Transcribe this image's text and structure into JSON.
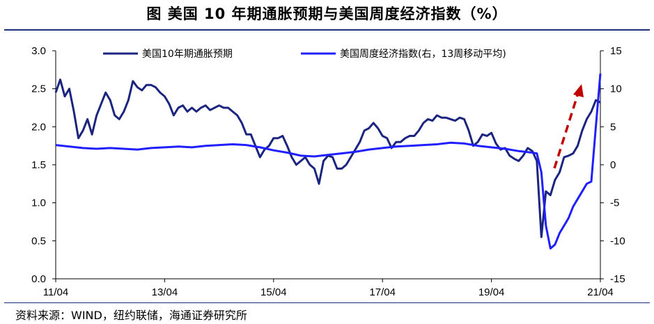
{
  "title": "图  美国 10 年期通胀预期与美国周度经济指数（%）",
  "source": "资料来源：WIND，纽约联储，海通证券研究所",
  "colors": {
    "expectation": "#1b2580",
    "weekly": "#1f1fff",
    "arrow": "#c00000"
  },
  "chart_data": {
    "type": "line",
    "x_ticks": [
      "11/04",
      "13/04",
      "15/04",
      "17/04",
      "19/04",
      "21/04"
    ],
    "y_left": {
      "ticks": [
        "3.0",
        "2.5",
        "2.0",
        "1.5",
        "1.0",
        "0.5",
        "0.0"
      ],
      "range": [
        0,
        3
      ]
    },
    "y_right": {
      "ticks": [
        "15",
        "10",
        "5",
        "0",
        "-5",
        "-10",
        "-15"
      ],
      "range": [
        -15,
        15
      ]
    },
    "legend_placement": "top",
    "annotation": "red dashed arrow pointing up-right near 2021",
    "series": [
      {
        "name": "美国10年期通胀预期",
        "axis": "left",
        "points": [
          [
            "2011-04",
            2.45
          ],
          [
            "2011-05",
            2.62
          ],
          [
            "2011-06",
            2.4
          ],
          [
            "2011-07",
            2.5
          ],
          [
            "2011-08",
            2.2
          ],
          [
            "2011-09",
            1.85
          ],
          [
            "2011-10",
            1.95
          ],
          [
            "2011-11",
            2.1
          ],
          [
            "2011-12",
            1.9
          ],
          [
            "2012-01",
            2.15
          ],
          [
            "2012-02",
            2.3
          ],
          [
            "2012-03",
            2.45
          ],
          [
            "2012-04",
            2.35
          ],
          [
            "2012-05",
            2.15
          ],
          [
            "2012-06",
            2.1
          ],
          [
            "2012-07",
            2.2
          ],
          [
            "2012-08",
            2.35
          ],
          [
            "2012-09",
            2.6
          ],
          [
            "2012-10",
            2.52
          ],
          [
            "2012-11",
            2.48
          ],
          [
            "2012-12",
            2.55
          ],
          [
            "2013-01",
            2.55
          ],
          [
            "2013-02",
            2.52
          ],
          [
            "2013-03",
            2.45
          ],
          [
            "2013-04",
            2.4
          ],
          [
            "2013-05",
            2.3
          ],
          [
            "2013-06",
            2.15
          ],
          [
            "2013-07",
            2.25
          ],
          [
            "2013-08",
            2.28
          ],
          [
            "2013-09",
            2.2
          ],
          [
            "2013-10",
            2.25
          ],
          [
            "2013-11",
            2.2
          ],
          [
            "2013-12",
            2.25
          ],
          [
            "2014-01",
            2.28
          ],
          [
            "2014-02",
            2.22
          ],
          [
            "2014-03",
            2.25
          ],
          [
            "2014-04",
            2.28
          ],
          [
            "2014-05",
            2.25
          ],
          [
            "2014-06",
            2.25
          ],
          [
            "2014-07",
            2.2
          ],
          [
            "2014-08",
            2.15
          ],
          [
            "2014-09",
            2.05
          ],
          [
            "2014-10",
            1.9
          ],
          [
            "2014-11",
            1.9
          ],
          [
            "2014-12",
            1.75
          ],
          [
            "2015-01",
            1.6
          ],
          [
            "2015-02",
            1.7
          ],
          [
            "2015-03",
            1.75
          ],
          [
            "2015-04",
            1.85
          ],
          [
            "2015-05",
            1.85
          ],
          [
            "2015-06",
            1.88
          ],
          [
            "2015-07",
            1.75
          ],
          [
            "2015-08",
            1.6
          ],
          [
            "2015-09",
            1.5
          ],
          [
            "2015-10",
            1.55
          ],
          [
            "2015-11",
            1.6
          ],
          [
            "2015-12",
            1.5
          ],
          [
            "2016-01",
            1.45
          ],
          [
            "2016-02",
            1.25
          ],
          [
            "2016-03",
            1.55
          ],
          [
            "2016-04",
            1.62
          ],
          [
            "2016-05",
            1.6
          ],
          [
            "2016-06",
            1.45
          ],
          [
            "2016-07",
            1.45
          ],
          [
            "2016-08",
            1.5
          ],
          [
            "2016-09",
            1.6
          ],
          [
            "2016-10",
            1.7
          ],
          [
            "2016-11",
            1.8
          ],
          [
            "2016-12",
            1.95
          ],
          [
            "2017-01",
            1.98
          ],
          [
            "2017-02",
            2.05
          ],
          [
            "2017-03",
            1.98
          ],
          [
            "2017-04",
            1.88
          ],
          [
            "2017-05",
            1.85
          ],
          [
            "2017-06",
            1.72
          ],
          [
            "2017-07",
            1.8
          ],
          [
            "2017-08",
            1.8
          ],
          [
            "2017-09",
            1.85
          ],
          [
            "2017-10",
            1.88
          ],
          [
            "2017-11",
            1.88
          ],
          [
            "2017-12",
            1.95
          ],
          [
            "2018-01",
            2.05
          ],
          [
            "2018-02",
            2.1
          ],
          [
            "2018-03",
            2.08
          ],
          [
            "2018-04",
            2.15
          ],
          [
            "2018-05",
            2.12
          ],
          [
            "2018-06",
            2.12
          ],
          [
            "2018-07",
            2.1
          ],
          [
            "2018-08",
            2.08
          ],
          [
            "2018-09",
            2.12
          ],
          [
            "2018-10",
            2.1
          ],
          [
            "2018-11",
            1.95
          ],
          [
            "2018-12",
            1.75
          ],
          [
            "2019-01",
            1.8
          ],
          [
            "2019-02",
            1.9
          ],
          [
            "2019-03",
            1.88
          ],
          [
            "2019-04",
            1.92
          ],
          [
            "2019-05",
            1.78
          ],
          [
            "2019-06",
            1.7
          ],
          [
            "2019-07",
            1.72
          ],
          [
            "2019-08",
            1.62
          ],
          [
            "2019-09",
            1.58
          ],
          [
            "2019-10",
            1.55
          ],
          [
            "2019-11",
            1.62
          ],
          [
            "2019-12",
            1.72
          ],
          [
            "2020-01",
            1.68
          ],
          [
            "2020-02",
            1.55
          ],
          [
            "2020-03",
            0.55
          ],
          [
            "2020-04",
            1.15
          ],
          [
            "2020-05",
            1.1
          ],
          [
            "2020-06",
            1.3
          ],
          [
            "2020-07",
            1.4
          ],
          [
            "2020-08",
            1.6
          ],
          [
            "2020-09",
            1.62
          ],
          [
            "2020-10",
            1.65
          ],
          [
            "2020-11",
            1.75
          ],
          [
            "2020-12",
            1.95
          ],
          [
            "2021-01",
            2.1
          ],
          [
            "2021-02",
            2.2
          ],
          [
            "2021-03",
            2.35
          ],
          [
            "2021-04",
            2.32
          ]
        ]
      },
      {
        "name": "美国周度经济指数(右，13周移动平均)",
        "axis": "right",
        "points": [
          [
            "2011-04",
            2.6
          ],
          [
            "2011-07",
            2.4
          ],
          [
            "2011-10",
            2.2
          ],
          [
            "2012-01",
            2.1
          ],
          [
            "2012-04",
            2.2
          ],
          [
            "2012-07",
            2.1
          ],
          [
            "2012-10",
            2.0
          ],
          [
            "2013-01",
            2.2
          ],
          [
            "2013-04",
            2.3
          ],
          [
            "2013-07",
            2.4
          ],
          [
            "2013-10",
            2.3
          ],
          [
            "2014-01",
            2.5
          ],
          [
            "2014-04",
            2.6
          ],
          [
            "2014-07",
            2.7
          ],
          [
            "2014-10",
            2.6
          ],
          [
            "2015-01",
            2.3
          ],
          [
            "2015-04",
            1.9
          ],
          [
            "2015-07",
            1.6
          ],
          [
            "2015-10",
            1.2
          ],
          [
            "2016-01",
            1.1
          ],
          [
            "2016-04",
            1.3
          ],
          [
            "2016-07",
            1.5
          ],
          [
            "2016-10",
            1.7
          ],
          [
            "2017-01",
            2.0
          ],
          [
            "2017-04",
            2.2
          ],
          [
            "2017-07",
            2.4
          ],
          [
            "2017-10",
            2.5
          ],
          [
            "2018-01",
            2.6
          ],
          [
            "2018-04",
            2.7
          ],
          [
            "2018-07",
            2.9
          ],
          [
            "2018-10",
            2.8
          ],
          [
            "2019-01",
            2.5
          ],
          [
            "2019-04",
            2.3
          ],
          [
            "2019-07",
            2.1
          ],
          [
            "2019-10",
            1.8
          ],
          [
            "2020-01",
            1.6
          ],
          [
            "2020-02",
            1.5
          ],
          [
            "2020-03",
            -1.0
          ],
          [
            "2020-04",
            -8.0
          ],
          [
            "2020-05",
            -11.0
          ],
          [
            "2020-06",
            -10.5
          ],
          [
            "2020-07",
            -9.0
          ],
          [
            "2020-08",
            -8.0
          ],
          [
            "2020-09",
            -7.0
          ],
          [
            "2020-10",
            -5.5
          ],
          [
            "2020-11",
            -4.5
          ],
          [
            "2020-12",
            -3.5
          ],
          [
            "2021-01",
            -2.5
          ],
          [
            "2021-02",
            -2.2
          ],
          [
            "2021-03",
            5.0
          ],
          [
            "2021-04",
            12.0
          ]
        ]
      }
    ]
  }
}
